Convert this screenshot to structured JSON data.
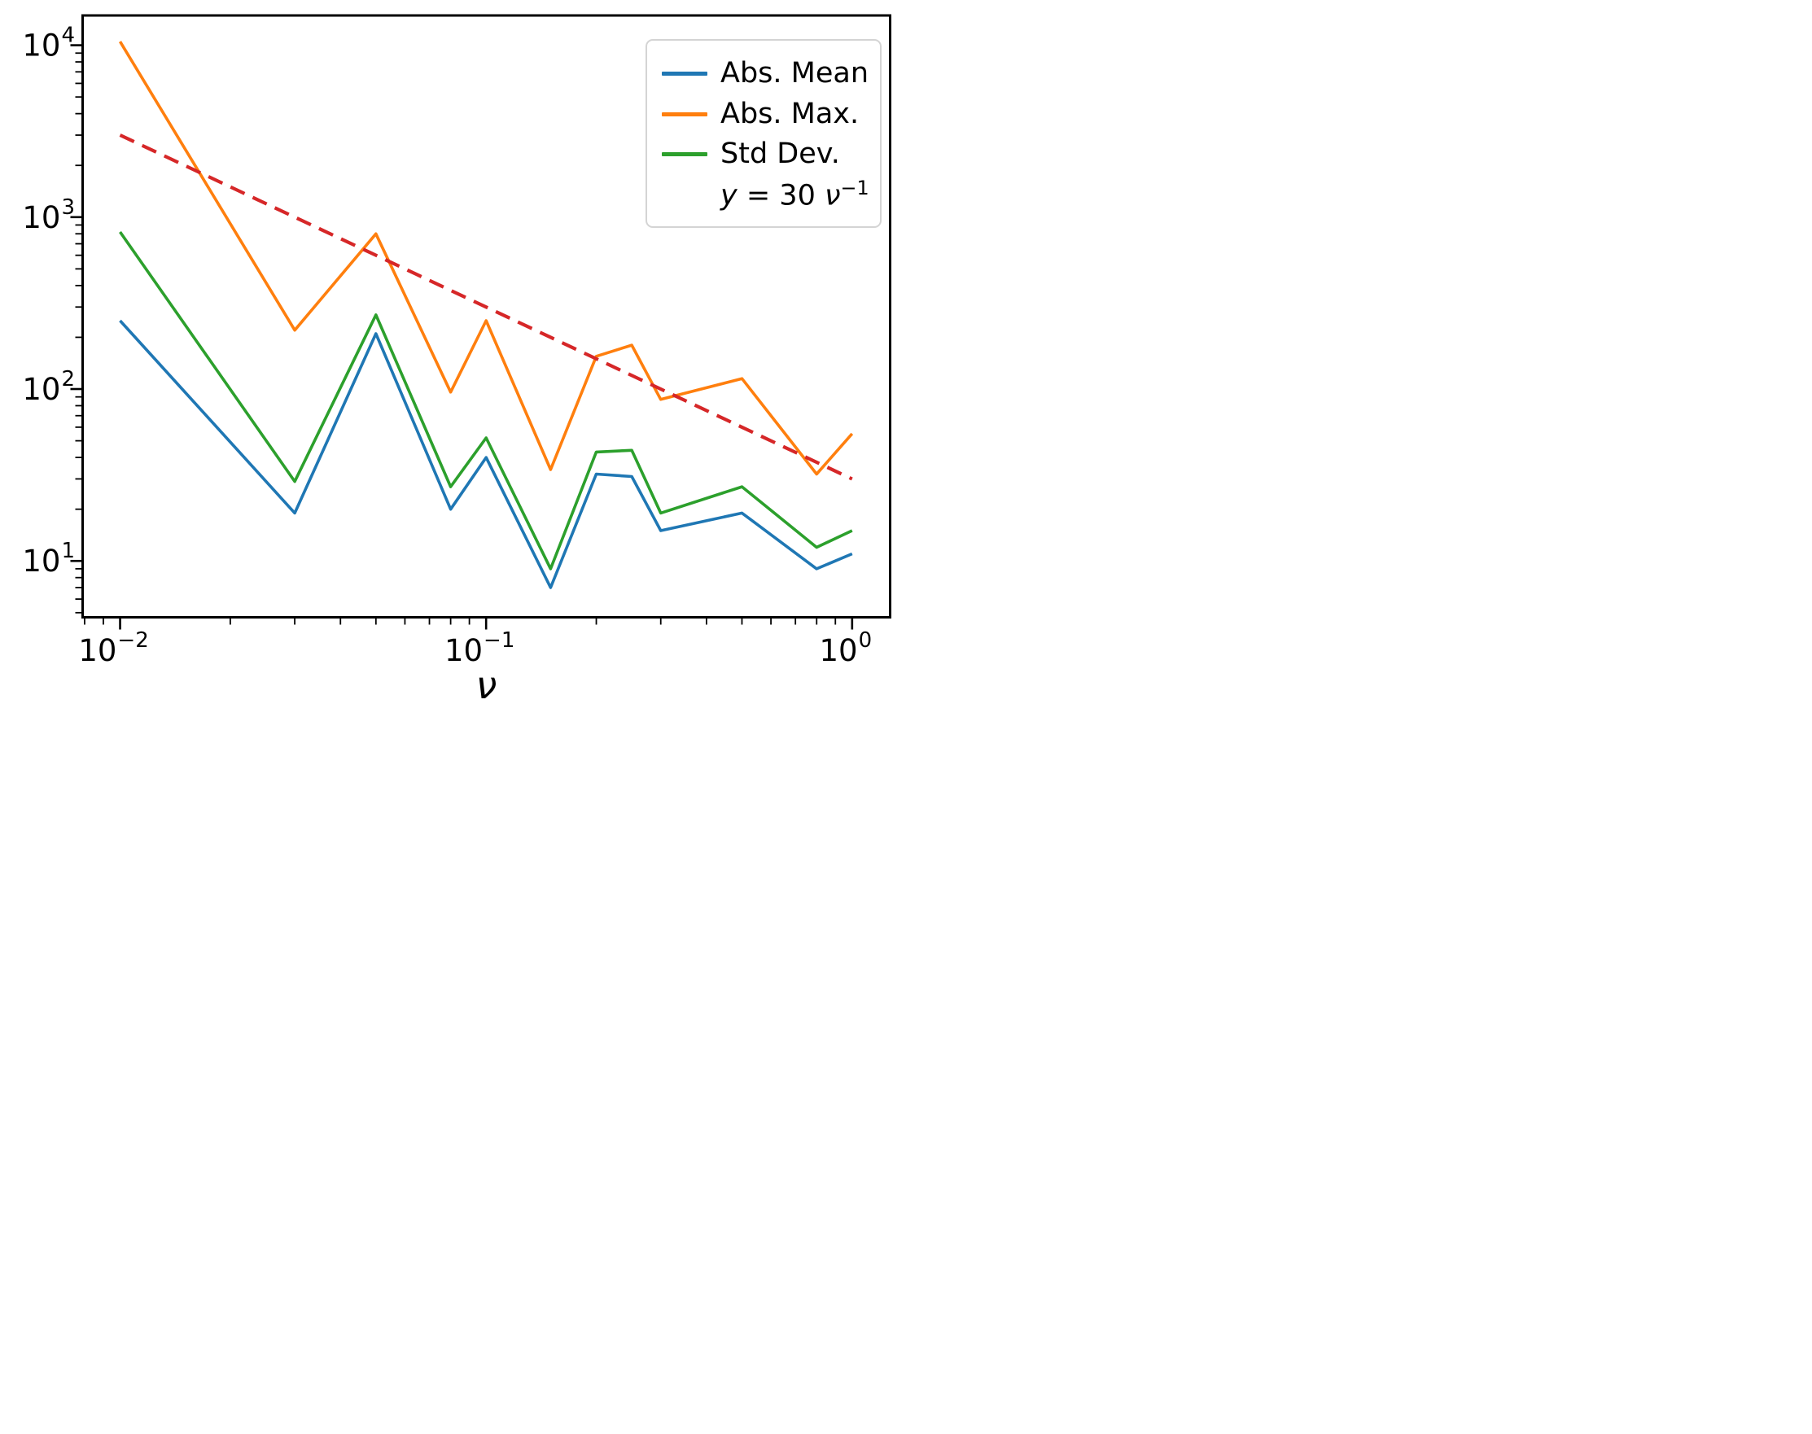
{
  "figure": {
    "background": "#ffffff",
    "frame_color": "#000000",
    "text_color": "#000000"
  },
  "chart_data": {
    "type": "line",
    "x_scale": "log",
    "y_scale": "log",
    "title": "",
    "xlabel": "ν",
    "ylabel": "",
    "grid": false,
    "legend_position": "upper right",
    "xlim": [
      0.0079,
      1.27
    ],
    "ylim": [
      4.7,
      14900
    ],
    "x_ticks": [
      "10⁻²",
      "10⁻¹",
      "10⁰"
    ],
    "y_ticks": [
      "10¹",
      "10²",
      "10³",
      "10⁴"
    ],
    "x_tick_exponents": [
      -2,
      -1,
      0
    ],
    "y_tick_exponents": [
      1,
      2,
      3,
      4
    ],
    "x": [
      0.01,
      0.03,
      0.05,
      0.08,
      0.1,
      0.15,
      0.2,
      0.25,
      0.3,
      0.5,
      0.8,
      1.0
    ],
    "series": [
      {
        "name": "Abs. Mean",
        "color": "#1f77b4",
        "dashed": false,
        "values": [
          250,
          19,
          210,
          20,
          40,
          7,
          32,
          31,
          15,
          19,
          9,
          11
        ]
      },
      {
        "name": "Abs. Max.",
        "color": "#ff7f0e",
        "dashed": false,
        "values": [
          10500,
          220,
          800,
          96,
          250,
          34,
          155,
          180,
          87,
          115,
          32,
          55
        ]
      },
      {
        "name": "Std Dev.",
        "color": "#2ca02c",
        "dashed": false,
        "values": [
          820,
          29,
          270,
          27,
          52,
          9,
          43,
          44,
          19,
          27,
          12,
          15
        ]
      },
      {
        "name": "y = 30 ν⁻¹",
        "color": "#d62728",
        "dashed": true,
        "x_override": [
          0.01,
          1.0
        ],
        "values": [
          3000,
          30
        ],
        "label_parts": [
          {
            "t": "y",
            "i": 1
          },
          {
            "t": " = 30 ",
            "i": 0
          },
          {
            "t": "ν",
            "i": 1
          },
          {
            "t": "−1",
            "i": 0,
            "sup": 1
          }
        ]
      }
    ]
  }
}
